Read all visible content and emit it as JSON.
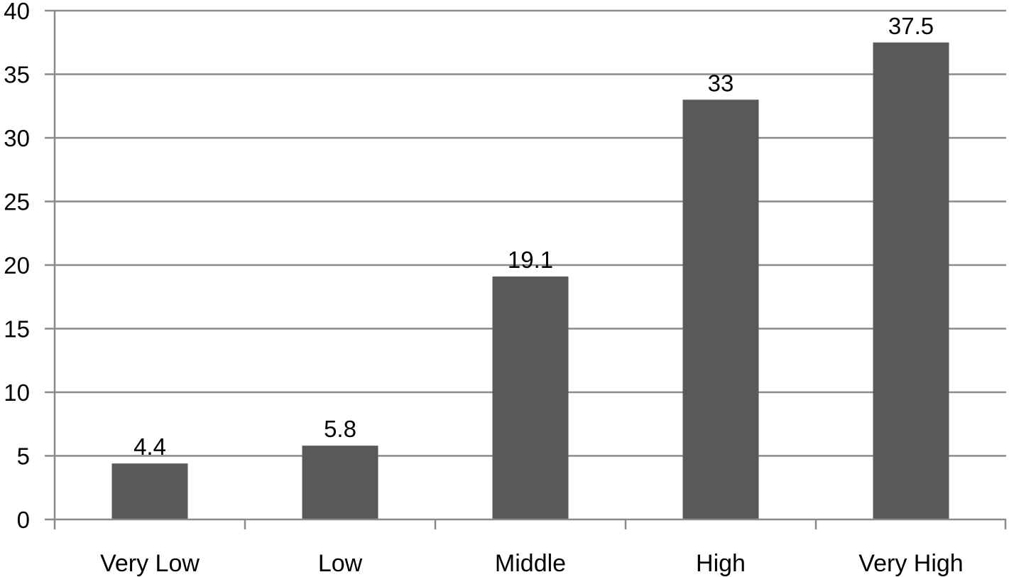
{
  "chart_data": {
    "type": "bar",
    "title": "",
    "xlabel": "",
    "ylabel": "",
    "categories": [
      "Very Low",
      "Low",
      "Middle",
      "High",
      "Very High"
    ],
    "values": [
      4.4,
      5.8,
      19.1,
      33,
      37.5
    ],
    "value_labels": [
      "4.4",
      "5.8",
      "19.1",
      "33",
      "37.5"
    ],
    "ylim": [
      0,
      40
    ],
    "yticks": [
      0,
      5,
      10,
      15,
      20,
      25,
      30,
      35,
      40
    ],
    "ytick_labels": [
      "0",
      "5",
      "10",
      "15",
      "20",
      "25",
      "30",
      "35",
      "40"
    ],
    "grid": true,
    "legend": "none",
    "bar_color": "#595959",
    "grid_color": "#8a8a8a"
  }
}
